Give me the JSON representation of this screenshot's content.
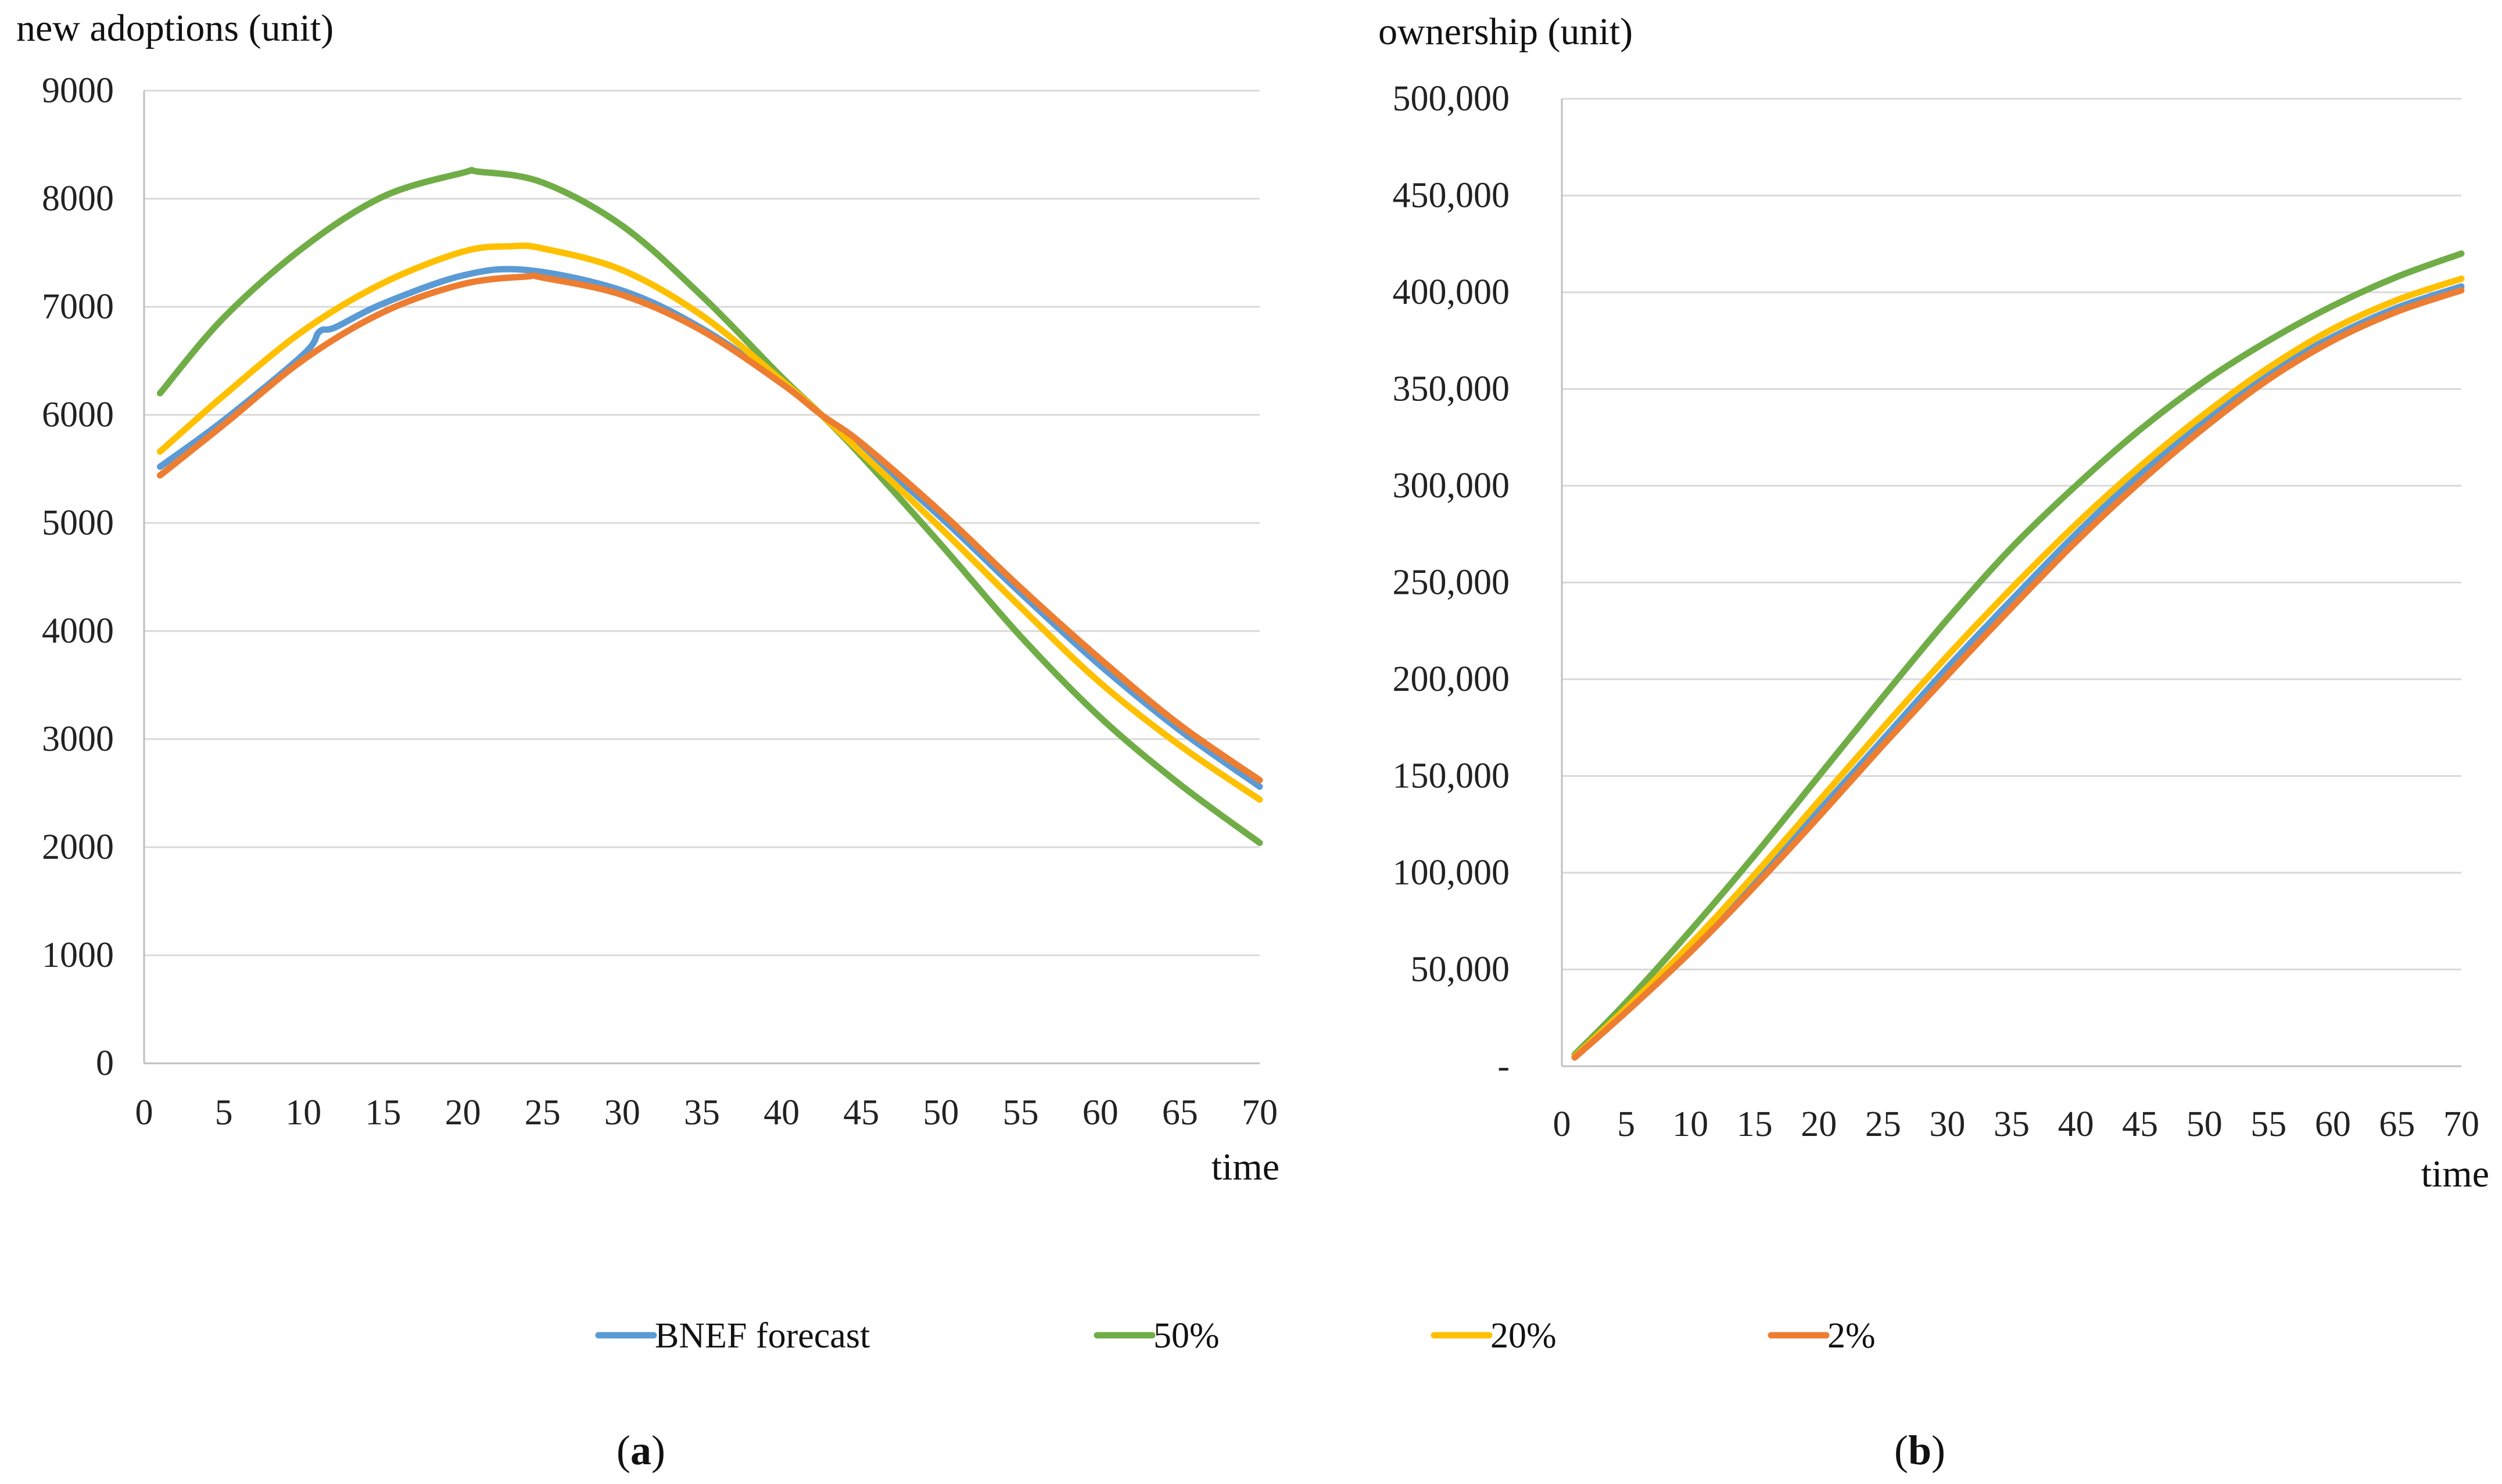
{
  "chart_data": [
    {
      "id": "a",
      "type": "line",
      "panel_label": "a",
      "title": "",
      "ylabel": "new adoptions (unit)",
      "xlabel": "time",
      "xlim": [
        0,
        70
      ],
      "ylim": [
        0,
        9000
      ],
      "x_ticks": [
        0,
        5,
        10,
        15,
        20,
        25,
        30,
        35,
        40,
        45,
        50,
        55,
        60,
        65,
        70
      ],
      "y_ticks": [
        0,
        1000,
        2000,
        3000,
        4000,
        5000,
        6000,
        7000,
        8000,
        9000
      ],
      "y_tick_labels": [
        "0",
        "1000",
        "2000",
        "3000",
        "4000",
        "5000",
        "6000",
        "7000",
        "8000",
        "9000"
      ],
      "grid": "horizontal",
      "series": [
        {
          "name": "BNEF forecast",
          "color": "#5b9bd5",
          "x": [
            1,
            5,
            10,
            11,
            12,
            15,
            20,
            24,
            30,
            35,
            40,
            42.5,
            45,
            50,
            55,
            60,
            65,
            70
          ],
          "y": [
            5520,
            5950,
            6560,
            6770,
            6810,
            7030,
            7290,
            7340,
            7150,
            6800,
            6300,
            6000,
            5700,
            5050,
            4350,
            3680,
            3080,
            2560
          ]
        },
        {
          "name": "50%",
          "color": "#70ad47",
          "x": [
            1,
            5,
            10,
            15,
            20,
            21,
            25,
            30,
            35,
            40,
            42.5,
            45,
            50,
            55,
            60,
            65,
            70
          ],
          "y": [
            6200,
            6900,
            7550,
            8020,
            8240,
            8250,
            8150,
            7750,
            7100,
            6350,
            6000,
            5620,
            4800,
            3950,
            3200,
            2580,
            2040
          ]
        },
        {
          "name": "20%",
          "color": "#ffc000",
          "x": [
            1,
            5,
            10,
            15,
            20,
            23,
            25,
            30,
            35,
            40,
            42.5,
            45,
            50,
            55,
            60,
            65,
            70
          ],
          "y": [
            5660,
            6180,
            6780,
            7220,
            7510,
            7560,
            7540,
            7340,
            6920,
            6320,
            6000,
            5650,
            4950,
            4220,
            3520,
            2940,
            2440
          ]
        },
        {
          "name": "2%",
          "color": "#ed7d31",
          "x": [
            1,
            5,
            10,
            15,
            20,
            24,
            25,
            30,
            35,
            40,
            42.5,
            45,
            50,
            55,
            60,
            65,
            70
          ],
          "y": [
            5440,
            5910,
            6510,
            6950,
            7210,
            7280,
            7270,
            7110,
            6780,
            6290,
            6000,
            5740,
            5100,
            4400,
            3740,
            3130,
            2620
          ]
        }
      ]
    },
    {
      "id": "b",
      "type": "line",
      "panel_label": "b",
      "title": "",
      "ylabel": "ownership (unit)",
      "xlabel": "time",
      "xlim": [
        0,
        70
      ],
      "ylim": [
        0,
        500000
      ],
      "x_ticks": [
        0,
        5,
        10,
        15,
        20,
        25,
        30,
        35,
        40,
        45,
        50,
        55,
        60,
        65,
        70
      ],
      "y_ticks": [
        0,
        50000,
        100000,
        150000,
        200000,
        250000,
        300000,
        350000,
        400000,
        450000,
        500000
      ],
      "y_tick_labels": [
        "-",
        "50,000",
        "100,000",
        "150,000",
        "200,000",
        "250,000",
        "300,000",
        "350,000",
        "400,000",
        "450,000",
        "500,000"
      ],
      "grid": "horizontal",
      "series": [
        {
          "name": "BNEF forecast",
          "color": "#5b9bd5",
          "x": [
            1,
            5,
            10,
            15,
            20,
            25,
            30,
            35,
            40,
            45,
            50,
            55,
            60,
            65,
            70
          ],
          "y": [
            5000,
            29000,
            61000,
            95000,
            132000,
            169000,
            206000,
            241000,
            275000,
            306000,
            334000,
            358000,
            377000,
            392000,
            403000
          ]
        },
        {
          "name": "50%",
          "color": "#70ad47",
          "x": [
            1,
            5,
            10,
            15,
            20,
            25,
            30,
            35,
            40,
            45,
            50,
            55,
            60,
            65,
            70
          ],
          "y": [
            6000,
            33000,
            70000,
            109000,
            150000,
            191000,
            231000,
            268000,
            300000,
            329000,
            354000,
            375000,
            393000,
            408000,
            420000
          ]
        },
        {
          "name": "20%",
          "color": "#ffc000",
          "x": [
            1,
            5,
            10,
            15,
            20,
            25,
            30,
            35,
            40,
            45,
            50,
            55,
            60,
            65,
            70
          ],
          "y": [
            5000,
            30000,
            63000,
            99000,
            137000,
            175000,
            212000,
            247000,
            280000,
            310000,
            337000,
            361000,
            381000,
            396000,
            407000
          ]
        },
        {
          "name": "2%",
          "color": "#ed7d31",
          "x": [
            1,
            5,
            10,
            15,
            20,
            25,
            30,
            35,
            40,
            45,
            50,
            55,
            60,
            65,
            70
          ],
          "y": [
            4500,
            28000,
            59000,
            93000,
            129000,
            166000,
            202000,
            237000,
            271000,
            302000,
            330000,
            355000,
            375000,
            390000,
            401000
          ]
        }
      ]
    }
  ],
  "legend": [
    {
      "name": "BNEF forecast",
      "color": "#5b9bd5"
    },
    {
      "name": "50%",
      "color": "#70ad47"
    },
    {
      "name": "20%",
      "color": "#ffc000"
    },
    {
      "name": "2%",
      "color": "#ed7d31"
    }
  ]
}
